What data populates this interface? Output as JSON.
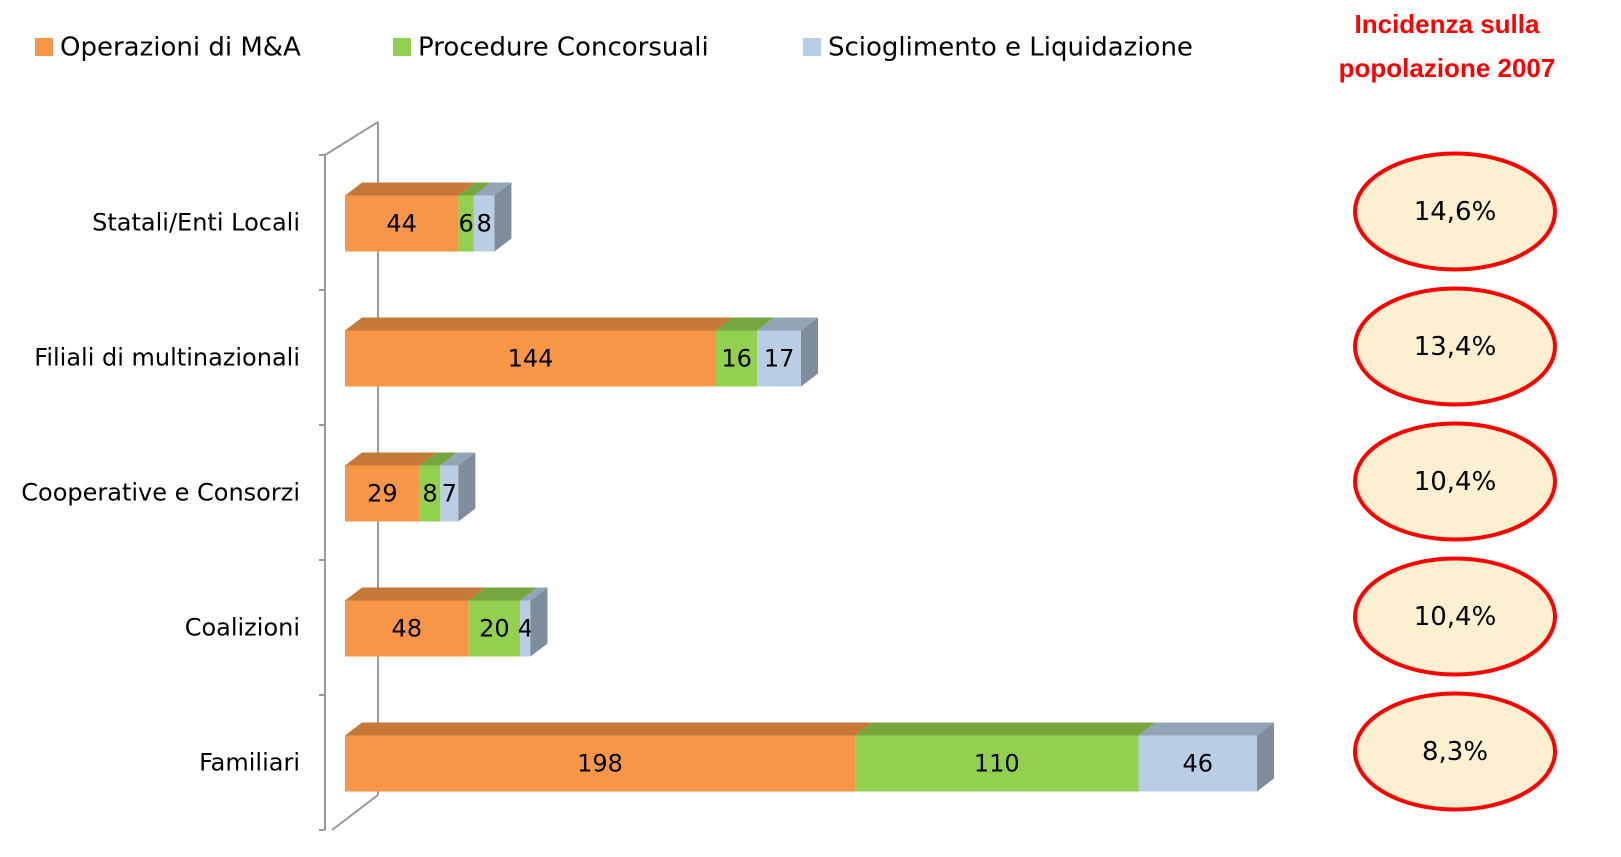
{
  "chart_data": {
    "type": "bar",
    "orientation": "horizontal",
    "stacked": true,
    "categories": [
      "Statali/Enti Locali",
      "Filiali di multinazionali",
      "Cooperative e Consorzi",
      "Coalizioni",
      "Familiari"
    ],
    "series": [
      {
        "name": "Operazioni di M&A",
        "color": "#f79646",
        "values": [
          44,
          144,
          29,
          48,
          198
        ]
      },
      {
        "name": "Procedure Concorsuali",
        "color": "#92d050",
        "values": [
          6,
          16,
          8,
          20,
          110
        ]
      },
      {
        "name": "Scioglimento e Liquidazione",
        "color": "#b9cde5",
        "values": [
          8,
          17,
          7,
          4,
          46
        ]
      }
    ],
    "xlim": [
      0,
      380
    ],
    "legend": "top",
    "incidence": {
      "title": "Incidenza sulla popolazione 2007",
      "color": "#ff0000",
      "values": [
        14.6,
        13.4,
        10.4,
        10.4,
        8.3
      ],
      "value_labels": [
        "14,6%",
        "13,4%",
        "10,4%",
        "10,4%",
        "8,3%"
      ]
    }
  }
}
